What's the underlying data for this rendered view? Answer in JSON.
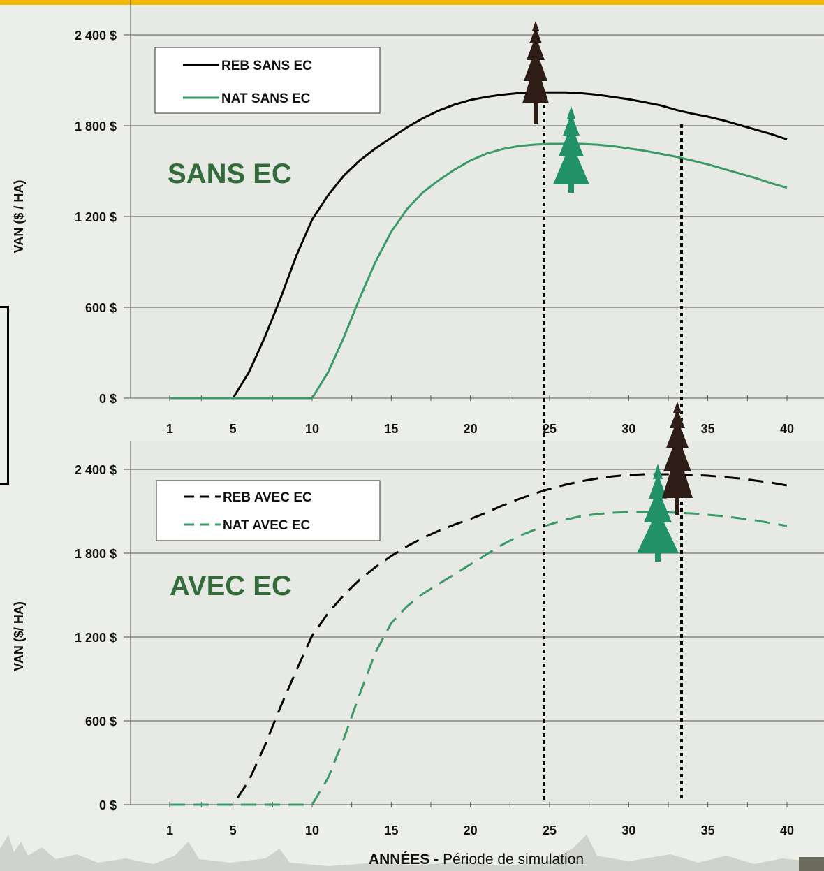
{
  "chart_data": [
    {
      "type": "line",
      "annotation": "SANS EC",
      "ylabel": "VAN ($ / HA)",
      "x_ticks": [
        "1",
        "5",
        "10",
        "15",
        "20",
        "25",
        "30",
        "35",
        "40"
      ],
      "y_ticks": [
        "0 $",
        "600 $",
        "1 200 $",
        "1 800 $",
        "2 400 $"
      ],
      "ylim": [
        0,
        2400
      ],
      "xlim": [
        1,
        40
      ],
      "grid": "horizontal",
      "legend_position": "top-left",
      "series": [
        {
          "name": "REB SANS EC",
          "color": "#000000",
          "style": "solid",
          "x": [
            1,
            2,
            3,
            4,
            5,
            6,
            7,
            8,
            9,
            10,
            11,
            12,
            13,
            14,
            15,
            16,
            17,
            18,
            19,
            20,
            21,
            22,
            23,
            24,
            25,
            26,
            27,
            28,
            29,
            30,
            31,
            32,
            33,
            34,
            35,
            36,
            37,
            38,
            39,
            40
          ],
          "values": [
            0,
            0,
            0,
            0,
            0,
            170,
            400,
            660,
            940,
            1180,
            1340,
            1470,
            1570,
            1650,
            1720,
            1790,
            1850,
            1900,
            1940,
            1970,
            1990,
            2005,
            2015,
            2020,
            2020,
            2020,
            2015,
            2005,
            1990,
            1975,
            1955,
            1935,
            1905,
            1880,
            1860,
            1835,
            1805,
            1775,
            1745,
            1710
          ]
        },
        {
          "name": "NAT SANS EC",
          "color": "#3a9a68",
          "style": "solid",
          "x": [
            1,
            2,
            3,
            4,
            5,
            6,
            7,
            8,
            9,
            10,
            11,
            12,
            13,
            14,
            15,
            16,
            17,
            18,
            19,
            20,
            21,
            22,
            23,
            24,
            25,
            26,
            27,
            28,
            29,
            30,
            31,
            32,
            33,
            34,
            35,
            36,
            37,
            38,
            39,
            40
          ],
          "values": [
            0,
            0,
            0,
            0,
            0,
            0,
            0,
            0,
            0,
            0,
            170,
            400,
            660,
            900,
            1100,
            1250,
            1360,
            1440,
            1510,
            1570,
            1615,
            1645,
            1665,
            1675,
            1680,
            1680,
            1680,
            1675,
            1665,
            1650,
            1635,
            1615,
            1595,
            1570,
            1545,
            1515,
            1485,
            1455,
            1420,
            1390
          ]
        }
      ]
    },
    {
      "type": "line",
      "annotation": "AVEC EC",
      "ylabel": "VAN ($/ HA)",
      "xlabel_bold": "ANNÉES -",
      "xlabel": "Période de simulation",
      "x_ticks": [
        "1",
        "5",
        "10",
        "15",
        "20",
        "25",
        "30",
        "35",
        "40"
      ],
      "y_ticks": [
        "0 $",
        "600 $",
        "1 200 $",
        "1 800 $",
        "2 400 $"
      ],
      "ylim": [
        0,
        2400
      ],
      "xlim": [
        1,
        40
      ],
      "grid": "horizontal",
      "legend_position": "top-left",
      "series": [
        {
          "name": "REB AVEC EC",
          "color": "#000000",
          "style": "dashed",
          "x": [
            1,
            2,
            3,
            4,
            5,
            6,
            7,
            8,
            9,
            10,
            11,
            12,
            13,
            14,
            15,
            16,
            17,
            18,
            19,
            20,
            21,
            22,
            23,
            24,
            25,
            26,
            27,
            28,
            29,
            30,
            31,
            32,
            33,
            34,
            35,
            36,
            37,
            38,
            39,
            40
          ],
          "values": [
            0,
            0,
            0,
            0,
            0,
            170,
            420,
            700,
            960,
            1210,
            1370,
            1500,
            1610,
            1700,
            1780,
            1850,
            1910,
            1960,
            2005,
            2045,
            2090,
            2140,
            2185,
            2225,
            2260,
            2290,
            2315,
            2335,
            2350,
            2360,
            2365,
            2365,
            2365,
            2360,
            2355,
            2345,
            2335,
            2320,
            2305,
            2285
          ]
        },
        {
          "name": "NAT AVEC EC",
          "color": "#3a9a68",
          "style": "dashed",
          "x": [
            1,
            2,
            3,
            4,
            5,
            6,
            7,
            8,
            9,
            10,
            11,
            12,
            13,
            14,
            15,
            16,
            17,
            18,
            19,
            20,
            21,
            22,
            23,
            24,
            25,
            26,
            27,
            28,
            29,
            30,
            31,
            32,
            33,
            34,
            35,
            36,
            37,
            38,
            39,
            40
          ],
          "values": [
            0,
            0,
            0,
            0,
            0,
            0,
            0,
            0,
            0,
            0,
            190,
            470,
            790,
            1090,
            1300,
            1420,
            1510,
            1580,
            1650,
            1720,
            1790,
            1860,
            1920,
            1965,
            2005,
            2040,
            2065,
            2080,
            2090,
            2095,
            2095,
            2095,
            2090,
            2085,
            2075,
            2065,
            2050,
            2035,
            2015,
            1995
          ]
        }
      ]
    }
  ]
}
